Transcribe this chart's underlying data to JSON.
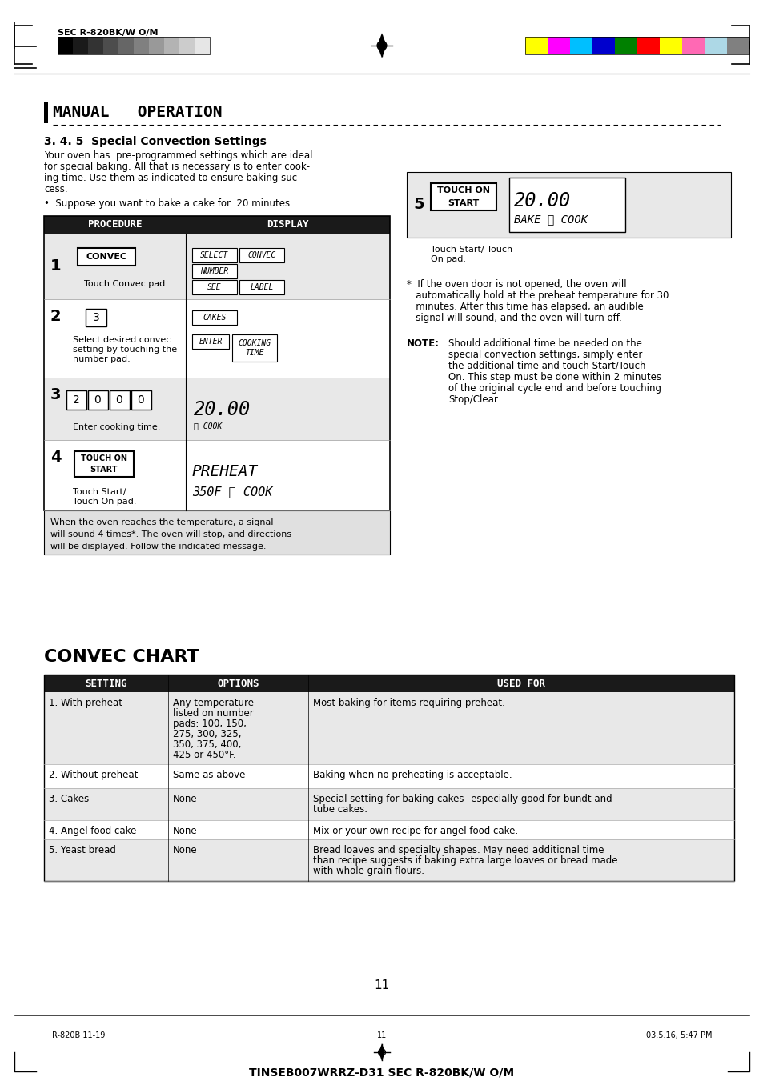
{
  "page_title": "MANUAL   OPERATION",
  "section_title": "3. 4. 5  Special Convection Settings",
  "intro_text": "Your oven has  pre-programmed settings which are ideal\nfor special baking. All that is necessary is to enter cook-\ning time. Use them as indicated to ensure baking suc-\ncess.",
  "bullet_text": "•  Suppose you want to bake a cake for  20 minutes.",
  "bottom_procedure_note": "When the oven reaches the temperature, a signal\nwill sound 4 times*. The oven will stop, and directions\nwill be displayed. Follow the indicated message.",
  "asterisk_note": "*  If the oven door is not opened, the oven will\n   automatically hold at the preheat temperature for 30\n   minutes. After this time has elapsed, an audible\n   signal will sound, and the oven will turn off.",
  "note_bold": "NOTE:",
  "note_text": "Should additional time be needed on the\nspecial convection settings, simply enter\nthe additional time and touch Start/Touch\nOn. This step must be done within 2 minutes\nof the original cycle end and before touching\nStop/Clear.",
  "convec_chart_title": "CONVEC CHART",
  "chart_headers": [
    "SETTING",
    "OPTIONS",
    "USED FOR"
  ],
  "chart_rows": [
    [
      "1. With preheat",
      "Any temperature\nlisted on number\npads: 100, 150,\n275, 300, 325,\n350, 375, 400,\n425 or 450°F.",
      "Most baking for items requiring preheat."
    ],
    [
      "2. Without preheat",
      "Same as above",
      "Baking when no preheating is acceptable."
    ],
    [
      "3. Cakes",
      "None",
      "Special setting for baking cakes--especially good for bundt and\ntube cakes."
    ],
    [
      "4. Angel food cake",
      "None",
      "Mix or your own recipe for angel food cake."
    ],
    [
      "5. Yeast bread",
      "None",
      "Bread loaves and specialty shapes. May need additional time\nthan recipe suggests if baking extra large loaves or bread made\nwith whole grain flours."
    ]
  ],
  "page_number": "11",
  "footer_left": "R-820B 11-19",
  "footer_center": "11",
  "footer_right": "03.5.16, 5:47 PM",
  "footer_bottom": "TINSEB007WRRZ-D31 SEC R-820BK/W O/M",
  "header_text": "SEC R-820BK/W O/M",
  "grayscale_colors": [
    "#000000",
    "#1a1a1a",
    "#333333",
    "#4d4d4d",
    "#666666",
    "#808080",
    "#999999",
    "#b3b3b3",
    "#cccccc",
    "#e6e6e6"
  ],
  "color_bars": [
    "#ffff00",
    "#ff00ff",
    "#00bfff",
    "#0000cd",
    "#008000",
    "#ff0000",
    "#ffff00",
    "#ff69b4",
    "#add8e6",
    "#808080"
  ],
  "bg_color": "#ffffff",
  "table_header_bg": "#1a1a1a",
  "table_row_odd_bg": "#e8e8e8",
  "table_row_even_bg": "#ffffff",
  "procedure_header_bg": "#1a1a1a"
}
